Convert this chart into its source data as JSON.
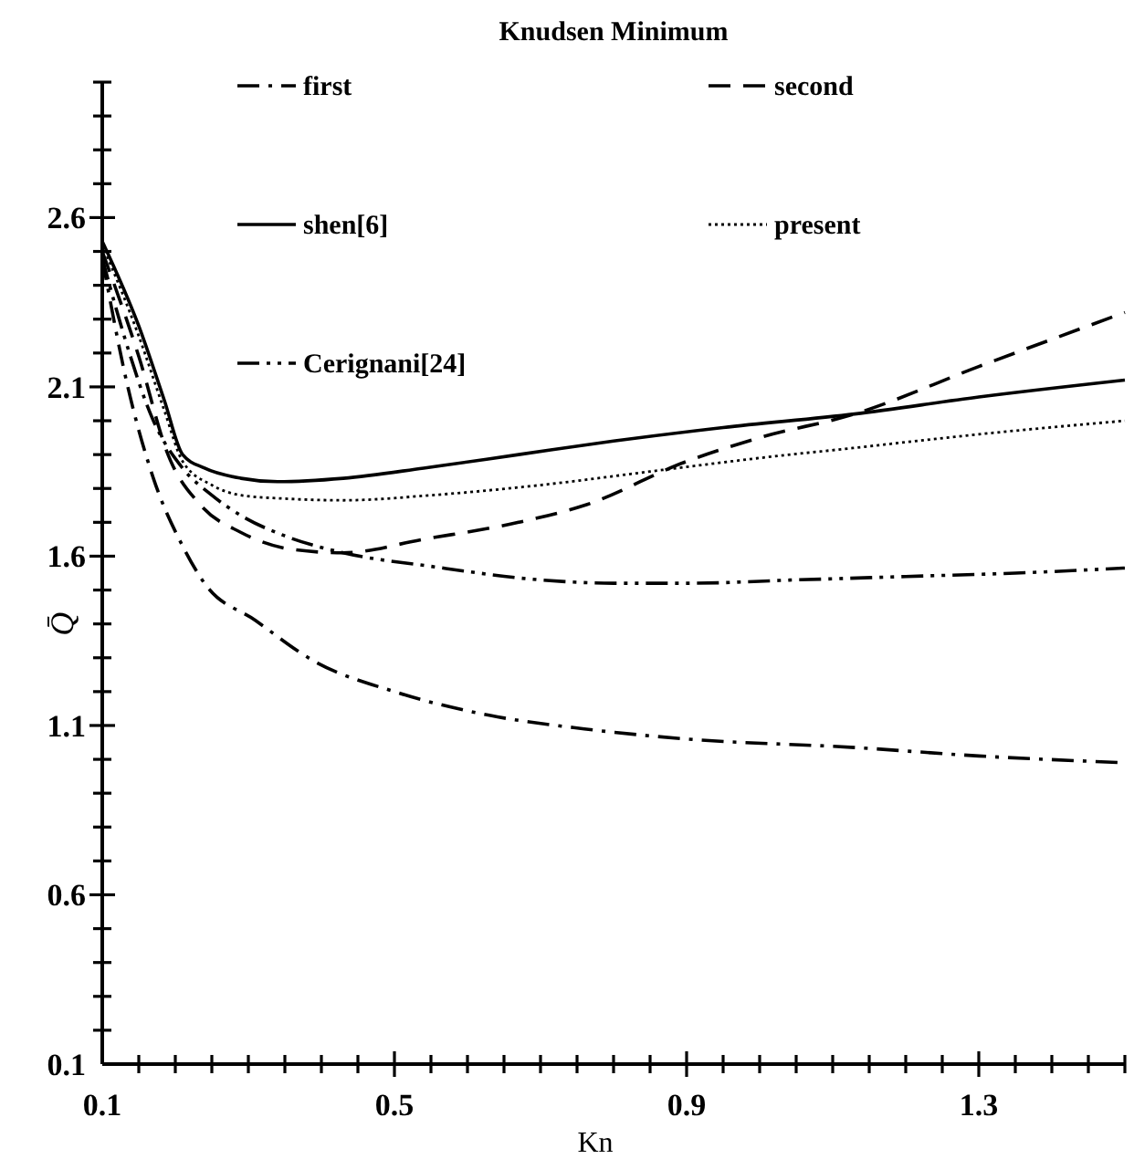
{
  "chart_data": {
    "type": "line",
    "title": "Knudsen Minimum",
    "xlabel": "Kn",
    "ylabel": "Q̄",
    "xlim": [
      0.1,
      1.5
    ],
    "ylim": [
      0.1,
      3.0
    ],
    "xticks": [
      0.1,
      {
        "value": 0.15,
        "label": null
      },
      {
        "value": 0.2,
        "label": null
      },
      {
        "value": 0.25,
        "label": null
      },
      {
        "value": 0.3,
        "label": null
      },
      {
        "value": 0.35,
        "label": null
      },
      {
        "value": 0.4,
        "label": null
      },
      {
        "value": 0.45,
        "label": null
      },
      0.5,
      {
        "value": 0.55,
        "label": null
      },
      {
        "value": 0.6,
        "label": null
      },
      {
        "value": 0.65,
        "label": null
      },
      {
        "value": 0.7,
        "label": null
      },
      {
        "value": 0.75,
        "label": null
      },
      {
        "value": 0.8,
        "label": null
      },
      {
        "value": 0.85,
        "label": null
      },
      0.9,
      {
        "value": 0.95,
        "label": null
      },
      {
        "value": 1.0,
        "label": null
      },
      {
        "value": 1.05,
        "label": null
      },
      {
        "value": 1.1,
        "label": null
      },
      {
        "value": 1.15,
        "label": null
      },
      {
        "value": 1.2,
        "label": null
      },
      {
        "value": 1.25,
        "label": null
      },
      1.3,
      {
        "value": 1.35,
        "label": null
      },
      {
        "value": 1.4,
        "label": null
      },
      {
        "value": 1.45,
        "label": null
      },
      {
        "value": 1.5,
        "label": null
      }
    ],
    "yticks": [
      0.1,
      {
        "value": 0.2,
        "label": null
      },
      {
        "value": 0.3,
        "label": null
      },
      {
        "value": 0.4,
        "label": null
      },
      {
        "value": 0.5,
        "label": null
      },
      0.6,
      {
        "value": 0.7,
        "label": null
      },
      {
        "value": 0.8,
        "label": null
      },
      {
        "value": 0.9,
        "label": null
      },
      {
        "value": 1.0,
        "label": null
      },
      1.1,
      {
        "value": 1.2,
        "label": null
      },
      {
        "value": 1.3,
        "label": null
      },
      {
        "value": 1.4,
        "label": null
      },
      {
        "value": 1.5,
        "label": null
      },
      1.6,
      {
        "value": 1.7,
        "label": null
      },
      {
        "value": 1.8,
        "label": null
      },
      {
        "value": 1.9,
        "label": null
      },
      {
        "value": 2.0,
        "label": null
      },
      2.1,
      {
        "value": 2.2,
        "label": null
      },
      {
        "value": 2.3,
        "label": null
      },
      {
        "value": 2.4,
        "label": null
      },
      {
        "value": 2.5,
        "label": null
      },
      2.6,
      {
        "value": 2.7,
        "label": null
      },
      {
        "value": 2.8,
        "label": null
      },
      {
        "value": 2.9,
        "label": null
      },
      {
        "value": 3.0,
        "label": null
      }
    ],
    "grid": false,
    "legend": "top",
    "marker": "none",
    "series": [
      {
        "name": "first",
        "color": "#000000",
        "line_style": "dashdot",
        "x": [
          0.1,
          0.135,
          0.17,
          0.21,
          0.24,
          0.31,
          0.39,
          0.5,
          0.63,
          0.76,
          0.9,
          1.13,
          1.3,
          1.5
        ],
        "values": [
          2.48,
          2.1,
          1.83,
          1.63,
          1.52,
          1.41,
          1.29,
          1.2,
          1.13,
          1.09,
          1.06,
          1.035,
          1.01,
          0.99
        ]
      },
      {
        "name": "second",
        "color": "#000000",
        "line_style": "dashed",
        "x": [
          0.1,
          0.15,
          0.19,
          0.235,
          0.29,
          0.36,
          0.43,
          0.54,
          0.67,
          0.76,
          0.9,
          1.0,
          1.13,
          1.3,
          1.5
        ],
        "values": [
          2.5,
          2.19,
          1.9,
          1.75,
          1.67,
          1.62,
          1.61,
          1.65,
          1.7,
          1.75,
          1.88,
          1.95,
          2.02,
          2.16,
          2.32
        ]
      },
      {
        "name": "shen[6]",
        "color": "#000000",
        "line_style": "solid",
        "x": [
          0.1,
          0.15,
          0.185,
          0.21,
          0.24,
          0.29,
          0.34,
          0.43,
          0.54,
          0.67,
          0.8,
          0.95,
          1.13,
          1.3,
          1.5
        ],
        "values": [
          2.53,
          2.28,
          2.06,
          1.9,
          1.86,
          1.83,
          1.82,
          1.83,
          1.86,
          1.9,
          1.94,
          1.98,
          2.02,
          2.07,
          2.12
        ]
      },
      {
        "name": "present",
        "color": "#000000",
        "line_style": "dotted",
        "x": [
          0.1,
          0.15,
          0.185,
          0.21,
          0.25,
          0.29,
          0.35,
          0.43,
          0.55,
          0.7,
          0.85,
          1.0,
          1.13,
          1.3,
          1.5
        ],
        "values": [
          2.52,
          2.25,
          2.03,
          1.88,
          1.81,
          1.78,
          1.77,
          1.765,
          1.78,
          1.81,
          1.85,
          1.89,
          1.92,
          1.96,
          2.0
        ]
      },
      {
        "name": "Cerignani[24]",
        "color": "#000000",
        "line_style": "dashdotdot",
        "x": [
          0.1,
          0.13,
          0.17,
          0.21,
          0.25,
          0.29,
          0.35,
          0.43,
          0.55,
          0.7,
          0.8,
          0.9,
          1.05,
          1.2,
          1.35,
          1.5
        ],
        "values": [
          2.48,
          2.25,
          2.0,
          1.86,
          1.78,
          1.72,
          1.66,
          1.61,
          1.57,
          1.53,
          1.52,
          1.52,
          1.53,
          1.54,
          1.55,
          1.565
        ]
      }
    ]
  }
}
